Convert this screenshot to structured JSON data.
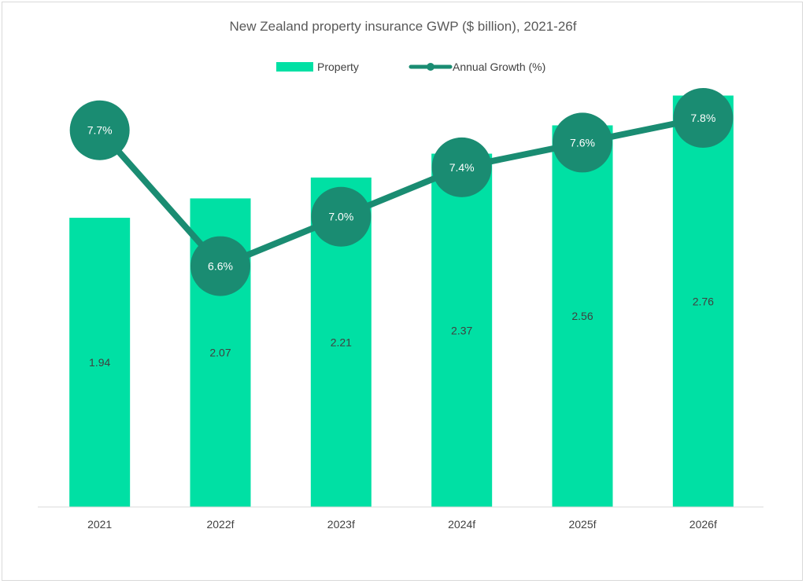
{
  "chart_data": {
    "type": "bar",
    "title": "New Zealand property insurance GWP ($ billion), 2021-26f",
    "categories": [
      "2021",
      "2022f",
      "2023f",
      "2024f",
      "2025f",
      "2026f"
    ],
    "series": [
      {
        "name": "Property",
        "type": "bar",
        "values": [
          1.94,
          2.07,
          2.21,
          2.37,
          2.56,
          2.76
        ],
        "labels": [
          "1.94",
          "2.07",
          "2.21",
          "2.37",
          "2.56",
          "2.76"
        ],
        "color": "#00e0a4"
      },
      {
        "name": "Annual Growth (%)",
        "type": "line",
        "values": [
          7.7,
          6.6,
          7.0,
          7.4,
          7.6,
          7.8
        ],
        "labels": [
          "7.7%",
          "6.6%",
          "7.0%",
          "7.4%",
          "7.6%",
          "7.8%"
        ],
        "color": "#1a8c72"
      }
    ],
    "legend_position": "top-center",
    "grid": false,
    "ylim_bars": [
      0,
      2.9
    ],
    "ylim_growth": [
      4.65,
      8.15
    ]
  }
}
